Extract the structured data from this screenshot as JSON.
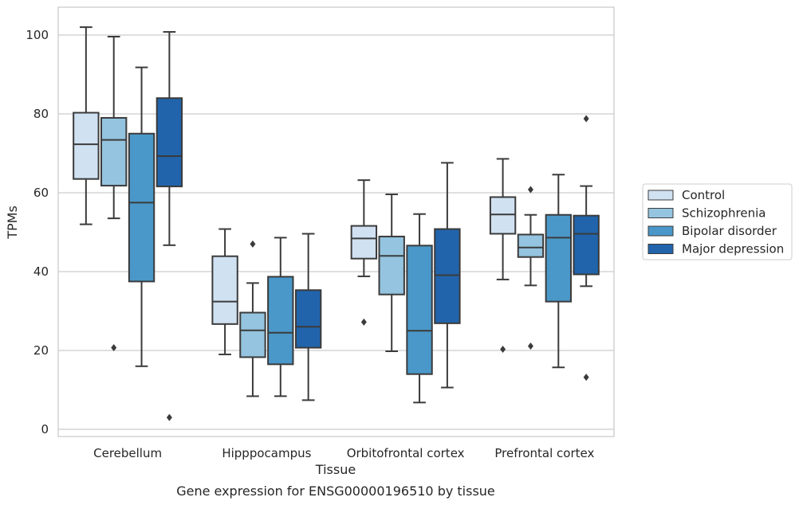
{
  "chart_data": {
    "type": "box",
    "title": "",
    "caption": "Gene expression for ENSG00000196510 by tissue",
    "xlabel": "Tissue",
    "ylabel": "TPMs",
    "ylim": [
      -1.5,
      107
    ],
    "yticks": [
      0,
      20,
      40,
      60,
      80,
      100
    ],
    "grid": "horizontal",
    "legend_position": "right",
    "categories": [
      "Cerebellum",
      "Hipppocampus",
      "Orbitofrontal cortex",
      "Prefrontal cortex"
    ],
    "series": [
      {
        "name": "Control",
        "color": "#d0e1f2",
        "boxes": [
          {
            "whisker_low": 52,
            "q1": 63.5,
            "median": 72.3,
            "q3": 80.3,
            "whisker_high": 102,
            "outliers": []
          },
          {
            "whisker_low": 19,
            "q1": 26.7,
            "median": 32.4,
            "q3": 43.9,
            "whisker_high": 50.8,
            "outliers": []
          },
          {
            "whisker_low": 38.8,
            "q1": 43.3,
            "median": 48.4,
            "q3": 51.6,
            "whisker_high": 63.2,
            "outliers": [
              27.2
            ]
          },
          {
            "whisker_low": 38,
            "q1": 49.6,
            "median": 54.5,
            "q3": 58.9,
            "whisker_high": 68.6,
            "outliers": [
              20.3
            ]
          }
        ]
      },
      {
        "name": "Schizophrenia",
        "color": "#94c4df",
        "boxes": [
          {
            "whisker_low": 53.5,
            "q1": 61.8,
            "median": 73.4,
            "q3": 79,
            "whisker_high": 99.6,
            "outliers": [
              20.7
            ]
          },
          {
            "whisker_low": 8.4,
            "q1": 18.3,
            "median": 25.1,
            "q3": 29.6,
            "whisker_high": 37.1,
            "outliers": [
              47
            ]
          },
          {
            "whisker_low": 19.8,
            "q1": 34.2,
            "median": 44,
            "q3": 48.9,
            "whisker_high": 59.6,
            "outliers": []
          },
          {
            "whisker_low": 36.5,
            "q1": 43.7,
            "median": 46.1,
            "q3": 49.4,
            "whisker_high": 54.4,
            "outliers": [
              60.8,
              21.1
            ]
          }
        ]
      },
      {
        "name": "Bipolar disorder",
        "color": "#4a98c9",
        "boxes": [
          {
            "whisker_low": 16,
            "q1": 37.5,
            "median": 57.5,
            "q3": 75,
            "whisker_high": 91.8,
            "outliers": []
          },
          {
            "whisker_low": 8.4,
            "q1": 16.5,
            "median": 24.5,
            "q3": 38.7,
            "whisker_high": 48.6,
            "outliers": []
          },
          {
            "whisker_low": 6.8,
            "q1": 14,
            "median": 25,
            "q3": 46.6,
            "whisker_high": 54.6,
            "outliers": []
          },
          {
            "whisker_low": 15.7,
            "q1": 32.4,
            "median": 48.6,
            "q3": 54.4,
            "whisker_high": 64.6,
            "outliers": []
          }
        ]
      },
      {
        "name": "Major depression",
        "color": "#2164ab",
        "boxes": [
          {
            "whisker_low": 46.7,
            "q1": 61.6,
            "median": 69.3,
            "q3": 84,
            "whisker_high": 100.8,
            "outliers": [
              3
            ]
          },
          {
            "whisker_low": 7.4,
            "q1": 20.7,
            "median": 26,
            "q3": 35.3,
            "whisker_high": 49.6,
            "outliers": []
          },
          {
            "whisker_low": 10.6,
            "q1": 26.9,
            "median": 39.1,
            "q3": 50.8,
            "whisker_high": 67.6,
            "outliers": []
          },
          {
            "whisker_low": 36.3,
            "q1": 39.3,
            "median": 49.6,
            "q3": 54.2,
            "whisker_high": 61.7,
            "outliers": [
              78.8,
              13.2
            ]
          }
        ]
      }
    ]
  }
}
